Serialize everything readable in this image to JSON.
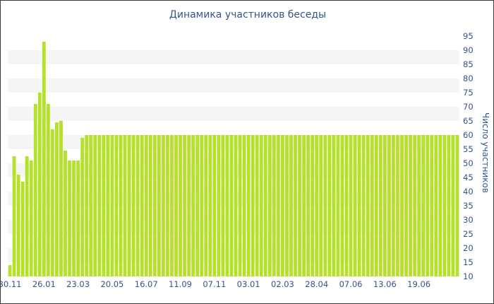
{
  "chart_data": {
    "type": "bar",
    "title": "Динамика участников беседы",
    "xlabel": "",
    "ylabel": "Число участников",
    "ylim": [
      10,
      95
    ],
    "y_ticks": [
      10,
      15,
      20,
      25,
      30,
      35,
      40,
      45,
      50,
      55,
      60,
      65,
      70,
      75,
      80,
      85,
      90,
      95
    ],
    "x_tick_labels": [
      {
        "index": 0,
        "label": "30.11"
      },
      {
        "index": 8,
        "label": "26.01"
      },
      {
        "index": 16,
        "label": "23.03"
      },
      {
        "index": 24,
        "label": "20.05"
      },
      {
        "index": 32,
        "label": "16.07"
      },
      {
        "index": 40,
        "label": "11.09"
      },
      {
        "index": 48,
        "label": "07.11"
      },
      {
        "index": 56,
        "label": "03.01"
      },
      {
        "index": 64,
        "label": "02.03"
      },
      {
        "index": 72,
        "label": "28.04"
      },
      {
        "index": 80,
        "label": "07.06"
      },
      {
        "index": 88,
        "label": "13.06"
      },
      {
        "index": 96,
        "label": "19.06"
      }
    ],
    "grid": "alternating-bands",
    "bar_color": "#b5e02b",
    "band_color": "#f5f5f5",
    "text_color": "#34548a",
    "values": [
      14,
      52.5,
      46,
      43.5,
      52.5,
      51,
      71,
      75,
      93,
      71,
      62,
      64.5,
      65,
      54.5,
      51,
      51,
      51,
      59,
      60,
      60,
      60,
      60,
      60,
      60,
      60,
      60,
      60,
      60,
      60,
      60,
      60,
      60,
      60,
      60,
      60,
      60,
      60,
      60,
      60,
      60,
      60,
      60,
      60,
      60,
      60,
      60,
      60,
      60,
      60,
      60,
      60,
      60,
      60,
      60,
      60,
      60,
      60,
      60,
      60,
      60,
      60,
      60,
      60,
      60,
      60,
      60,
      60,
      60,
      60,
      60,
      60,
      60,
      60,
      60,
      60,
      60,
      60,
      60,
      60,
      60,
      60,
      60,
      60,
      60,
      60,
      60,
      60,
      60,
      60,
      60,
      60,
      60,
      60,
      60,
      60,
      60,
      60,
      60,
      60,
      60,
      60,
      60,
      60,
      60,
      60,
      60
    ]
  }
}
